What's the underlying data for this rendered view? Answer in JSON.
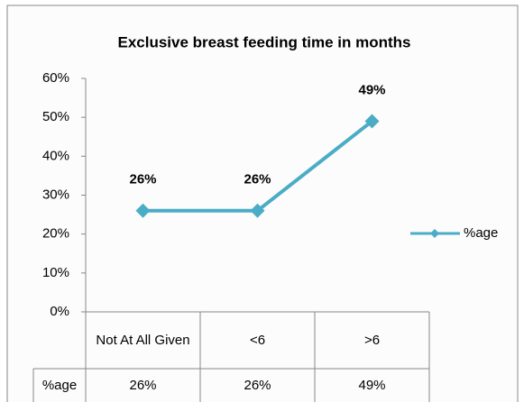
{
  "chart_data": {
    "type": "line",
    "title": "Exclusive breast feeding time in months",
    "categories": [
      "Not At All Given",
      "<6",
      ">6"
    ],
    "series": [
      {
        "name": "%age",
        "color": "#4bacc6",
        "values": [
          26,
          26,
          49
        ],
        "value_labels": [
          "26%",
          "26%",
          "49%"
        ]
      }
    ],
    "ylim": [
      0,
      60
    ],
    "yticks": [
      {
        "value": 0,
        "label": "0%"
      },
      {
        "value": 10,
        "label": "10%"
      },
      {
        "value": 20,
        "label": "20%"
      },
      {
        "value": 30,
        "label": "30%"
      },
      {
        "value": 40,
        "label": "40%"
      },
      {
        "value": 50,
        "label": "50%"
      },
      {
        "value": 60,
        "label": "60%"
      }
    ],
    "legend": "right"
  }
}
